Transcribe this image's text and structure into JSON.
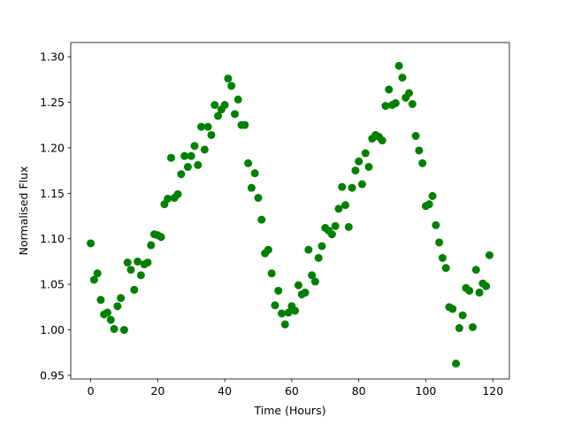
{
  "chart_data": {
    "type": "scatter",
    "xlabel": "Time (Hours)",
    "ylabel": "Normalised Flux",
    "color": "#008000",
    "x": [
      0,
      1,
      2,
      3,
      4,
      5,
      6,
      7,
      8,
      9,
      10,
      11,
      12,
      13,
      14,
      15,
      16,
      17,
      18,
      19,
      20,
      21,
      22,
      23,
      24,
      25,
      26,
      27,
      28,
      29,
      30,
      31,
      32,
      33,
      34,
      35,
      36,
      37,
      38,
      39,
      40,
      41,
      42,
      43,
      44,
      45,
      46,
      47,
      48,
      49,
      50,
      51,
      52,
      53,
      54,
      55,
      56,
      57,
      58,
      59,
      60,
      61,
      62,
      63,
      64,
      65,
      66,
      67,
      68,
      69,
      70,
      71,
      72,
      73,
      74,
      75,
      76,
      77,
      78,
      79,
      80,
      81,
      82,
      83,
      84,
      85,
      86,
      87,
      88,
      89,
      90,
      91,
      92,
      93,
      94,
      95,
      96,
      97,
      98,
      99,
      100,
      101,
      102,
      103,
      104,
      105,
      106,
      107,
      108,
      109,
      110,
      111,
      112,
      113,
      114,
      115,
      116,
      117,
      118,
      119
    ],
    "values": [
      1.095,
      1.055,
      1.062,
      1.033,
      1.017,
      1.019,
      1.011,
      1.001,
      1.026,
      1.035,
      1.0,
      1.074,
      1.066,
      1.044,
      1.075,
      1.06,
      1.072,
      1.074,
      1.093,
      1.105,
      1.104,
      1.102,
      1.138,
      1.144,
      1.189,
      1.145,
      1.149,
      1.171,
      1.191,
      1.179,
      1.191,
      1.202,
      1.181,
      1.223,
      1.198,
      1.223,
      1.214,
      1.247,
      1.235,
      1.242,
      1.247,
      1.276,
      1.268,
      1.237,
      1.253,
      1.225,
      1.225,
      1.183,
      1.156,
      1.172,
      1.145,
      1.121,
      1.084,
      1.088,
      1.062,
      1.027,
      1.043,
      1.018,
      1.006,
      1.019,
      1.026,
      1.021,
      1.049,
      1.039,
      1.041,
      1.088,
      1.06,
      1.053,
      1.079,
      1.092,
      1.112,
      1.109,
      1.105,
      1.114,
      1.133,
      1.157,
      1.137,
      1.113,
      1.156,
      1.175,
      1.185,
      1.16,
      1.194,
      1.179,
      1.21,
      1.214,
      1.212,
      1.208,
      1.246,
      1.264,
      1.247,
      1.249,
      1.29,
      1.277,
      1.255,
      1.26,
      1.248,
      1.213,
      1.197,
      1.183,
      1.136,
      1.138,
      1.147,
      1.115,
      1.096,
      1.079,
      1.068,
      1.025,
      1.023,
      0.963,
      1.002,
      1.016,
      1.046,
      1.043,
      1.003,
      1.066,
      1.041,
      1.051,
      1.048,
      1.082
    ],
    "xlim": [
      -5.95,
      124.95
    ],
    "xticks": [
      0,
      20,
      40,
      60,
      80,
      100,
      120
    ],
    "ylim": [
      0.9461,
      1.3156
    ],
    "yticks": [
      0.95,
      {
        "value": 1.0,
        "label": "1.00"
      },
      1.05,
      {
        "value": 1.1,
        "label": "1.10"
      },
      1.15,
      {
        "value": 1.2,
        "label": "1.20"
      },
      1.25,
      {
        "value": 1.3,
        "label": "1.30"
      }
    ]
  }
}
